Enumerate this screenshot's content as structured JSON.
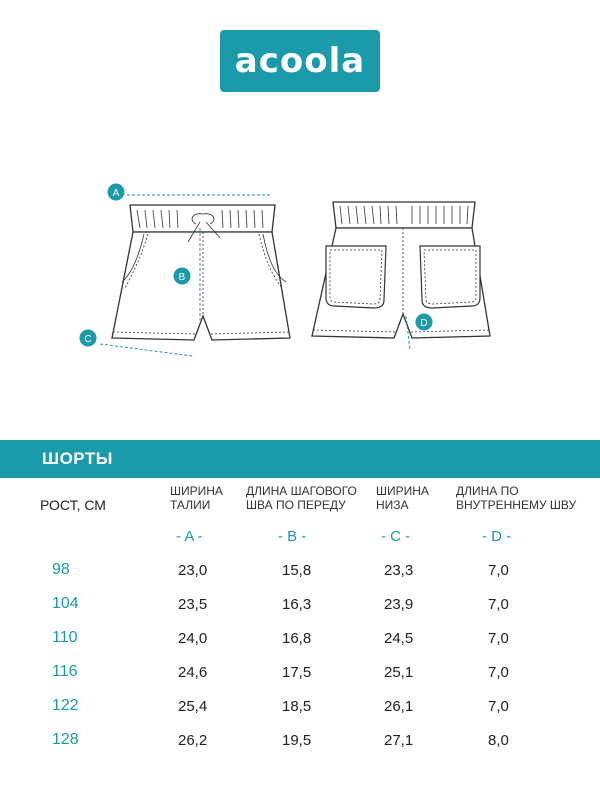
{
  "brand": {
    "logo_text": "acoola",
    "accent_color": "#1b9aaa"
  },
  "diagram": {
    "markers": [
      "A",
      "B",
      "C",
      "D"
    ]
  },
  "table": {
    "title": "ШОРТЫ",
    "row_header": "РОСТ, СМ",
    "columns": [
      {
        "label_line1": "ШИРИНА",
        "label_line2": "ТАЛИИ",
        "letter": "- A -"
      },
      {
        "label_line1": "ДЛИНА ШАГОВОГО",
        "label_line2": "ШВА ПО ПЕРЕДУ",
        "letter": "- B -"
      },
      {
        "label_line1": "ШИРИНА",
        "label_line2": "НИЗА",
        "letter": "- C -"
      },
      {
        "label_line1": "ДЛИНА ПО",
        "label_line2": "ВНУТРЕННЕМУ ШВУ",
        "letter": "- D -"
      }
    ],
    "rows": [
      {
        "size": "98",
        "values": [
          "23,0",
          "15,8",
          "23,3",
          "7,0"
        ]
      },
      {
        "size": "104",
        "values": [
          "23,5",
          "16,3",
          "23,9",
          "7,0"
        ]
      },
      {
        "size": "110",
        "values": [
          "24,0",
          "16,8",
          "24,5",
          "7,0"
        ]
      },
      {
        "size": "116",
        "values": [
          "24,6",
          "17,5",
          "25,1",
          "7,0"
        ]
      },
      {
        "size": "122",
        "values": [
          "25,4",
          "18,5",
          "26,1",
          "7,0"
        ]
      },
      {
        "size": "128",
        "values": [
          "26,2",
          "19,5",
          "27,1",
          "8,0"
        ]
      }
    ]
  }
}
